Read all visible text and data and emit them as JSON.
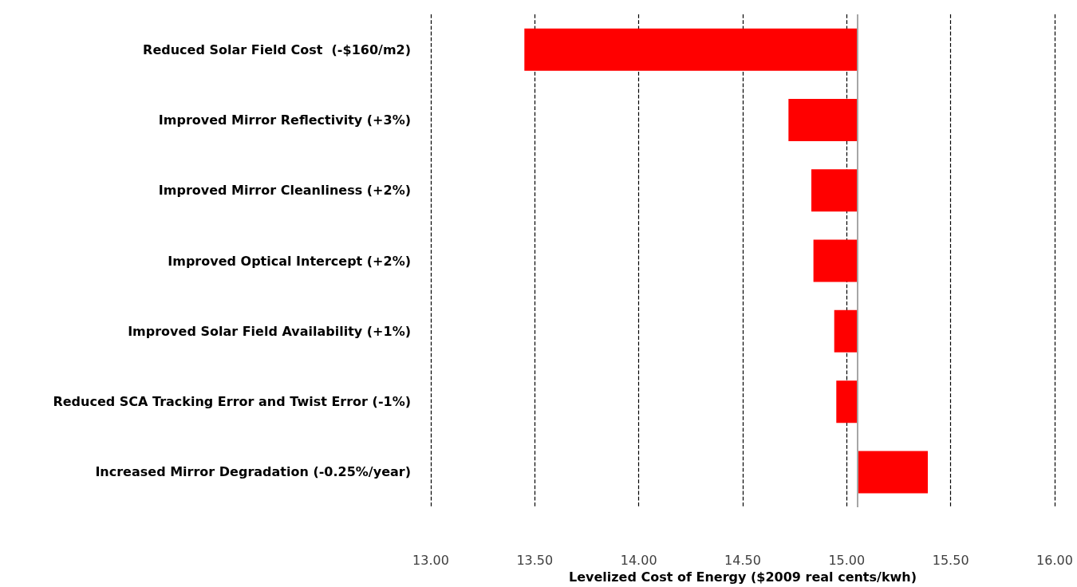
{
  "chart_data": {
    "type": "bar",
    "orientation": "horizontal",
    "xlabel": "Levelized Cost of Energy ($2009 real cents/kwh)",
    "categories": [
      "Reduced Solar Field Cost  (-$160/m2)",
      "Improved Mirror Reflectivity (+3%)",
      "Improved Mirror Cleanliness (+2%)",
      "Improved Optical Intercept (+2%)",
      "Improved Solar Field Availability (+1%)",
      "Reduced SCA Tracking Error and Twist Error (-1%)",
      "Increased Mirror Degradation (-0.25%/year)"
    ],
    "base": [
      15.05,
      15.05,
      15.05,
      15.05,
      15.05,
      15.05,
      15.05
    ],
    "values": [
      -1.6,
      -0.33,
      -0.22,
      -0.21,
      -0.11,
      -0.1,
      0.34
    ],
    "color": "#ff0000",
    "xlim": [
      13,
      16
    ],
    "xticks": [
      {
        "value": 13,
        "label": "13.00"
      },
      {
        "value": 13.5,
        "label": "13.50"
      },
      {
        "value": 14,
        "label": "14.00"
      },
      {
        "value": 14.5,
        "label": "14.50"
      },
      {
        "value": 15,
        "label": "15.00"
      },
      {
        "value": 15.5,
        "label": "15.50"
      },
      {
        "value": 16,
        "label": "16.00"
      }
    ],
    "ref_lines": [
      {
        "axis": "x",
        "value": 15.05,
        "color": "#a6a6a6",
        "line_style": "solid"
      }
    ],
    "grid": "x"
  }
}
